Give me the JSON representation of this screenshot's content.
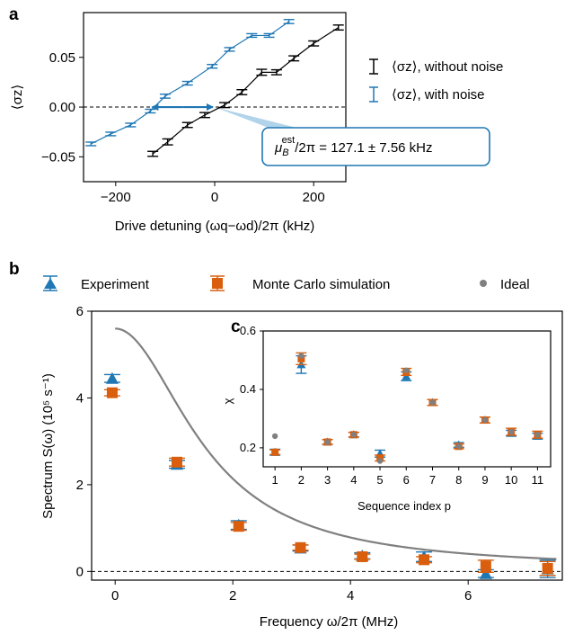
{
  "panel_letters": {
    "a": "a",
    "b": "b",
    "c": "c"
  },
  "colors": {
    "black": "#000000",
    "blue": "#1f77b4",
    "orange": "#d95f0e",
    "gray": "#808080",
    "annot_fill": "#a9cfe8"
  },
  "chart_data": [
    {
      "panel": "a",
      "type": "line",
      "xlabel": "Drive detuning (ωq−ωd)/2π (kHz)",
      "ylabel": "⟨σz⟩",
      "xlim": [
        -265,
        265
      ],
      "ylim": [
        -0.075,
        0.095
      ],
      "xticks": [
        "−200",
        "0",
        "200"
      ],
      "yticks": [
        "−0.05",
        "0.00",
        "0.05"
      ],
      "grid": false,
      "legend_placement": "right",
      "series": [
        {
          "name": "⟨σz⟩, without noise",
          "color": "#000000",
          "x": [
            -125,
            -95,
            -55,
            -20,
            20,
            55,
            95,
            125,
            160,
            200,
            250
          ],
          "y": [
            -0.047,
            -0.035,
            -0.018,
            -0.008,
            0.002,
            0.015,
            0.035,
            0.035,
            0.049,
            0.064,
            0.08
          ],
          "err": [
            0.0025,
            0.003,
            0.0025,
            0.0025,
            0.0025,
            0.0025,
            0.003,
            0.0025,
            0.0025,
            0.0025,
            0.0025
          ]
        },
        {
          "name": "⟨σz⟩, with noise",
          "color": "#1f77b4",
          "x": [
            -250,
            -210,
            -170,
            -130,
            -100,
            -55,
            -5,
            30,
            75,
            110,
            150
          ],
          "y": [
            -0.037,
            -0.027,
            -0.018,
            -0.004,
            0.011,
            0.024,
            0.041,
            0.058,
            0.072,
            0.072,
            0.086
          ],
          "err": [
            0.0018,
            0.0018,
            0.0018,
            0.0018,
            0.002,
            0.0018,
            0.0018,
            0.0018,
            0.0018,
            0.0018,
            0.002
          ]
        }
      ],
      "reference_line": {
        "y": 0.0,
        "style": "dashed"
      },
      "arrow": {
        "y": 0.0,
        "x_from": -130,
        "x_to": 0
      },
      "annotation": {
        "text_prefix": "μ",
        "sub": "B",
        "sup": "est",
        "text_rest": "/2π = 127.1 ± 7.56 kHz"
      }
    },
    {
      "panel": "b",
      "type": "scatter",
      "xlabel": "Frequency ω/2π (MHz)",
      "ylabel": "Spectrum S(ω) (10⁵ s⁻¹)",
      "xlim": [
        -0.4,
        7.6
      ],
      "ylim": [
        -0.2,
        6.0
      ],
      "xticks": [
        "0",
        "2",
        "4",
        "6"
      ],
      "yticks": [
        "0",
        "2",
        "4",
        "6"
      ],
      "grid": false,
      "legend_placement": "top",
      "legend": [
        "Experiment",
        "Monte Carlo simulation",
        "Ideal"
      ],
      "series": [
        {
          "name": "Experiment",
          "marker": "triangle",
          "color": "#1f77b4",
          "x": [
            -0.05,
            1.05,
            2.1,
            3.15,
            4.2,
            5.25,
            6.3,
            7.35
          ],
          "y": [
            4.45,
            2.47,
            1.07,
            0.54,
            0.36,
            0.34,
            -0.05,
            0.06
          ],
          "err": [
            0.09,
            0.09,
            0.1,
            0.07,
            0.07,
            0.11,
            0.09,
            0.2
          ]
        },
        {
          "name": "Monte Carlo simulation",
          "marker": "square",
          "color": "#d95f0e",
          "x": [
            -0.05,
            1.05,
            2.1,
            3.15,
            4.2,
            5.25,
            6.3,
            7.35
          ],
          "y": [
            4.12,
            2.52,
            1.04,
            0.55,
            0.34,
            0.27,
            0.12,
            0.07
          ],
          "err": [
            0.07,
            0.09,
            0.09,
            0.06,
            0.06,
            0.07,
            0.14,
            0.16
          ]
        }
      ],
      "theory_curve": {
        "name": "Ideal",
        "color": "#808080",
        "S0": 5.6,
        "x0": 1.55,
        "offset": 0.06
      },
      "reference_line": {
        "y": 0.0,
        "style": "dashed"
      }
    },
    {
      "panel": "c",
      "type": "scatter",
      "xlabel": "Sequence index p",
      "ylabel": "χ",
      "xlim": [
        0.55,
        11.5
      ],
      "ylim": [
        0.135,
        0.6
      ],
      "xticks": [
        "1",
        "2",
        "3",
        "4",
        "5",
        "6",
        "7",
        "8",
        "9",
        "10",
        "11"
      ],
      "yticks": [
        "0.2",
        "0.4",
        "0.6"
      ],
      "grid": false,
      "series": [
        {
          "name": "Experiment",
          "marker": "triangle",
          "color": "#1f77b4",
          "x": [
            1,
            2,
            3,
            4,
            5,
            6,
            7,
            8,
            9,
            10,
            11
          ],
          "y": [
            0.185,
            0.485,
            0.22,
            0.245,
            0.18,
            0.445,
            0.355,
            0.21,
            0.295,
            0.25,
            0.24
          ],
          "err": [
            0.01,
            0.03,
            0.008,
            0.008,
            0.012,
            0.015,
            0.01,
            0.008,
            0.01,
            0.01,
            0.01
          ]
        },
        {
          "name": "Monte Carlo simulation",
          "marker": "square",
          "color": "#d95f0e",
          "x": [
            1,
            2,
            3,
            4,
            5,
            6,
            7,
            8,
            9,
            10,
            11
          ],
          "y": [
            0.185,
            0.505,
            0.22,
            0.245,
            0.165,
            0.46,
            0.355,
            0.205,
            0.295,
            0.255,
            0.245
          ],
          "err": [
            0.008,
            0.02,
            0.008,
            0.008,
            0.01,
            0.012,
            0.01,
            0.008,
            0.01,
            0.012,
            0.012
          ]
        },
        {
          "name": "Ideal",
          "marker": "circle",
          "color": "#808080",
          "x": [
            1,
            2,
            3,
            4,
            5,
            6,
            7,
            8,
            9,
            10,
            11
          ],
          "y": [
            0.24,
            0.515,
            0.22,
            0.245,
            0.155,
            0.465,
            0.355,
            0.205,
            0.295,
            0.255,
            0.245
          ]
        }
      ]
    }
  ]
}
